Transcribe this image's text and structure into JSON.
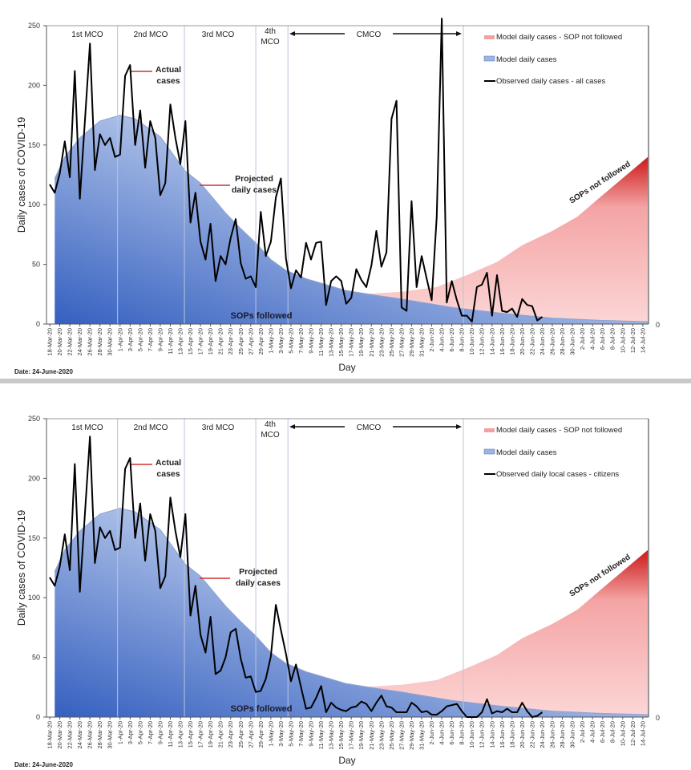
{
  "date_label": "Date: 24-June-2020",
  "chart_data": [
    {
      "type": "line",
      "title": "",
      "xlabel": "Day",
      "ylabel": "Daily cases of COVID-19",
      "ylim": [
        0,
        250
      ],
      "yticks": [
        "0",
        "50",
        "100",
        "150",
        "200",
        "250"
      ],
      "secondary_axis_label": "0",
      "x_tick_labels": [
        "18-Mar-20",
        "20-Mar-20",
        "22-Mar-20",
        "24-Mar-20",
        "26-Mar-20",
        "28-Mar-20",
        "30-Mar-20",
        "1-Apr-20",
        "3-Apr-20",
        "5-Apr-20",
        "7-Apr-20",
        "9-Apr-20",
        "11-Apr-20",
        "13-Apr-20",
        "15-Apr-20",
        "17-Apr-20",
        "19-Apr-20",
        "21-Apr-20",
        "23-Apr-20",
        "25-Apr-20",
        "27-Apr-20",
        "29-Apr-20",
        "1-May-20",
        "3-May-20",
        "5-May-20",
        "7-May-20",
        "9-May-20",
        "11-May-20",
        "13-May-20",
        "15-May-20",
        "17-May-20",
        "19-May-20",
        "21-May-20",
        "23-May-20",
        "25-May-20",
        "27-May-20",
        "29-May-20",
        "31-May-20",
        "2-Jun-20",
        "4-Jun-20",
        "6-Jun-20",
        "8-Jun-20",
        "10-Jun-20",
        "12-Jun-20",
        "14-Jun-20",
        "16-Jun-20",
        "18-Jun-20",
        "20-Jun-20",
        "22-Jun-20",
        "24-Jun-20",
        "26-Jun-20",
        "28-Jun-20",
        "30-Jun-20",
        "2-Jul-20",
        "4-Jul-20",
        "6-Jul-20",
        "8-Jul-20",
        "10-Jul-20",
        "12-Jul-20",
        "14-Jul-20"
      ],
      "phases": [
        {
          "label": "1st MCO"
        },
        {
          "label": "2nd MCO"
        },
        {
          "label": "3rd MCO"
        },
        {
          "label": "4th",
          "label2": "MCO"
        },
        {
          "label": "CMCO"
        }
      ],
      "phase_boundaries_day": [
        13.5,
        26.8,
        41,
        47.4,
        82.3
      ],
      "legend": [
        "Model daily cases - SOP not followed",
        "Model daily cases",
        "Observed daily cases - all cases"
      ],
      "legend_position": "top-right",
      "annotations": {
        "actual": [
          "Actual",
          "cases"
        ],
        "projected": [
          "Projected",
          "daily cases"
        ],
        "sops_followed": "SOPs followed",
        "sops_not_followed": "SOPs not followed"
      },
      "colors": {
        "observed": "#000000",
        "model": "#4a72c8",
        "model_not_followed": "#e04040",
        "annotation_arrow": "#d03030"
      },
      "series": [
        {
          "name": "Observed daily cases - all cases",
          "start_day": 0,
          "values": [
            117,
            110,
            126,
            153,
            123,
            212,
            105,
            170,
            235,
            129,
            159,
            150,
            156,
            140,
            142,
            208,
            217,
            150,
            179,
            131,
            170,
            156,
            108,
            118,
            184,
            156,
            134,
            170,
            85,
            110,
            69,
            54,
            84,
            36,
            57,
            50,
            72,
            88,
            51,
            38,
            40,
            31,
            94,
            57,
            69,
            106,
            122,
            55,
            30,
            45,
            39,
            68,
            54,
            68,
            69,
            16,
            36,
            40,
            36,
            17,
            22,
            46,
            37,
            31,
            49,
            78,
            48,
            60,
            172,
            187,
            14,
            11,
            103,
            31,
            57,
            38,
            20,
            90,
            277,
            18,
            36,
            20,
            7,
            7,
            2,
            31,
            33,
            43,
            7,
            41,
            11,
            10,
            13,
            6,
            21,
            16,
            15,
            3,
            6
          ]
        },
        {
          "name": "Model daily cases",
          "points": [
            [
              1,
              122
            ],
            [
              3,
              140
            ],
            [
              6,
              156
            ],
            [
              10,
              170
            ],
            [
              14,
              175
            ],
            [
              17,
              172
            ],
            [
              22,
              157
            ],
            [
              27,
              128
            ],
            [
              30,
              118
            ],
            [
              35,
              93
            ],
            [
              38,
              80
            ],
            [
              41,
              68
            ],
            [
              44,
              54
            ],
            [
              47,
              45
            ],
            [
              51,
              38
            ],
            [
              55,
              33
            ],
            [
              59,
              28
            ],
            [
              65,
              24
            ],
            [
              70,
              21
            ],
            [
              80,
              14
            ],
            [
              90,
              9
            ],
            [
              100,
              5
            ],
            [
              110,
              3
            ],
            [
              119,
              2
            ]
          ]
        },
        {
          "name": "Model daily cases - SOP not followed",
          "points": [
            [
              60,
              27
            ],
            [
              62,
              25
            ],
            [
              70,
              27
            ],
            [
              77,
              31
            ],
            [
              83,
              41
            ],
            [
              89,
              52
            ],
            [
              94,
              66
            ],
            [
              100,
              78
            ],
            [
              105,
              90
            ],
            [
              110,
              108
            ],
            [
              119,
              140
            ]
          ]
        }
      ]
    },
    {
      "type": "line",
      "title": "",
      "xlabel": "Day",
      "ylabel": "Daily cases of COVID-19",
      "ylim": [
        0,
        250
      ],
      "yticks": [
        "0",
        "50",
        "100",
        "150",
        "200",
        "250"
      ],
      "secondary_axis_label": "0",
      "x_tick_labels": [
        "18-Mar-20",
        "20-Mar-20",
        "22-Mar-20",
        "24-Mar-20",
        "26-Mar-20",
        "28-Mar-20",
        "30-Mar-20",
        "1-Apr-20",
        "3-Apr-20",
        "5-Apr-20",
        "7-Apr-20",
        "9-Apr-20",
        "11-Apr-20",
        "13-Apr-20",
        "15-Apr-20",
        "17-Apr-20",
        "19-Apr-20",
        "21-Apr-20",
        "23-Apr-20",
        "25-Apr-20",
        "27-Apr-20",
        "29-Apr-20",
        "1-May-20",
        "3-May-20",
        "5-May-20",
        "7-May-20",
        "9-May-20",
        "11-May-20",
        "13-May-20",
        "15-May-20",
        "17-May-20",
        "19-May-20",
        "21-May-20",
        "23-May-20",
        "25-May-20",
        "27-May-20",
        "29-May-20",
        "31-May-20",
        "2-Jun-20",
        "4-Jun-20",
        "6-Jun-20",
        "8-Jun-20",
        "10-Jun-20",
        "12-Jun-20",
        "14-Jun-20",
        "16-Jun-20",
        "18-Jun-20",
        "20-Jun-20",
        "22-Jun-20",
        "24-Jun-20",
        "26-Jun-20",
        "28-Jun-20",
        "30-Jun-20",
        "2-Jul-20",
        "4-Jul-20",
        "6-Jul-20",
        "8-Jul-20",
        "10-Jul-20",
        "12-Jul-20",
        "14-Jul-20"
      ],
      "phases": [
        {
          "label": "1st MCO"
        },
        {
          "label": "2nd MCO"
        },
        {
          "label": "3rd MCO"
        },
        {
          "label": "4th",
          "label2": "MCO"
        },
        {
          "label": "CMCO"
        }
      ],
      "phase_boundaries_day": [
        13.5,
        26.8,
        41,
        47.4,
        82.3
      ],
      "legend": [
        "Model daily cases - SOP not followed",
        "Model daily cases",
        "Observed daily local cases - citizens"
      ],
      "legend_position": "top-right",
      "annotations": {
        "actual": [
          "Actual",
          "cases"
        ],
        "projected": [
          "Projected",
          "daily cases"
        ],
        "sops_followed": "SOPs followed",
        "sops_not_followed": "SOPs not followed"
      },
      "colors": {
        "observed": "#000000",
        "model": "#4a72c8",
        "model_not_followed": "#e04040",
        "annotation_arrow": "#d03030"
      },
      "series": [
        {
          "name": "Observed daily local cases - citizens",
          "start_day": 0,
          "values": [
            117,
            110,
            126,
            153,
            123,
            212,
            105,
            170,
            235,
            129,
            159,
            150,
            156,
            140,
            142,
            208,
            217,
            150,
            179,
            131,
            170,
            156,
            108,
            118,
            184,
            156,
            134,
            170,
            85,
            110,
            69,
            54,
            84,
            36,
            39,
            50,
            71,
            74,
            49,
            33,
            34,
            21,
            22,
            32,
            51,
            94,
            73,
            53,
            30,
            44,
            25,
            7,
            8,
            16,
            26,
            4,
            12,
            8,
            6,
            5,
            8,
            9,
            13,
            11,
            5,
            12,
            18,
            9,
            8,
            4,
            4,
            4,
            12,
            9,
            4,
            5,
            2,
            2,
            5,
            9,
            10,
            11,
            5,
            0,
            0,
            0,
            4,
            15,
            3,
            5,
            4,
            7,
            4,
            4,
            12,
            5,
            0,
            1,
            4
          ]
        },
        {
          "name": "Model daily cases",
          "points": [
            [
              1,
              122
            ],
            [
              3,
              140
            ],
            [
              6,
              156
            ],
            [
              10,
              170
            ],
            [
              14,
              175
            ],
            [
              17,
              172
            ],
            [
              22,
              157
            ],
            [
              27,
              128
            ],
            [
              30,
              118
            ],
            [
              35,
              93
            ],
            [
              38,
              80
            ],
            [
              41,
              68
            ],
            [
              44,
              54
            ],
            [
              47,
              45
            ],
            [
              51,
              38
            ],
            [
              55,
              33
            ],
            [
              59,
              28
            ],
            [
              65,
              24
            ],
            [
              70,
              21
            ],
            [
              80,
              14
            ],
            [
              90,
              9
            ],
            [
              100,
              5
            ],
            [
              110,
              3
            ],
            [
              119,
              2
            ]
          ]
        },
        {
          "name": "Model daily cases - SOP not followed",
          "points": [
            [
              60,
              27
            ],
            [
              62,
              25
            ],
            [
              70,
              27
            ],
            [
              77,
              31
            ],
            [
              83,
              41
            ],
            [
              89,
              52
            ],
            [
              94,
              66
            ],
            [
              100,
              78
            ],
            [
              105,
              90
            ],
            [
              110,
              108
            ],
            [
              119,
              140
            ]
          ]
        }
      ]
    }
  ]
}
